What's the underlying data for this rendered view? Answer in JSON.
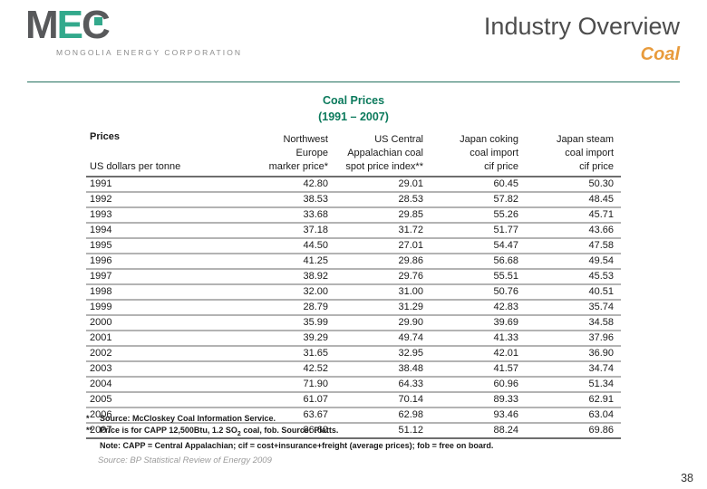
{
  "slide": {
    "page_number": "38"
  },
  "logo": {
    "letter_m": "M",
    "letter_e": "E",
    "letter_c": "C",
    "tagline": "MONGOLIA ENERGY CORPORATION",
    "gray": "#58595B",
    "green": "#33A98C"
  },
  "header": {
    "title": "Industry Overview",
    "subtitle": "Coal",
    "title_color": "#4D4D4D",
    "subtitle_color": "#E89B3C",
    "rule_color": "#25715F"
  },
  "table_title": {
    "line1": "Coal Prices",
    "line2": "(1991 – 2007)",
    "color": "#0B7A5C"
  },
  "table": {
    "corner_title": "Prices",
    "corner_subtitle": "US dollars per tonne",
    "columns": [
      {
        "lines": [
          "Northwest",
          "Europe",
          "marker price*"
        ]
      },
      {
        "lines": [
          "US Central",
          "Appalachian coal",
          "spot price index**"
        ]
      },
      {
        "lines": [
          "Japan coking",
          "coal import",
          "cif price"
        ]
      },
      {
        "lines": [
          "Japan steam",
          "coal import",
          "cif price"
        ]
      }
    ],
    "rows": [
      {
        "year": "1991",
        "values": [
          "42.80",
          "29.01",
          "60.45",
          "50.30"
        ]
      },
      {
        "year": "1992",
        "values": [
          "38.53",
          "28.53",
          "57.82",
          "48.45"
        ]
      },
      {
        "year": "1993",
        "values": [
          "33.68",
          "29.85",
          "55.26",
          "45.71"
        ]
      },
      {
        "year": "1994",
        "values": [
          "37.18",
          "31.72",
          "51.77",
          "43.66"
        ]
      },
      {
        "year": "1995",
        "values": [
          "44.50",
          "27.01",
          "54.47",
          "47.58"
        ]
      },
      {
        "year": "1996",
        "values": [
          "41.25",
          "29.86",
          "56.68",
          "49.54"
        ]
      },
      {
        "year": "1997",
        "values": [
          "38.92",
          "29.76",
          "55.51",
          "45.53"
        ]
      },
      {
        "year": "1998",
        "values": [
          "32.00",
          "31.00",
          "50.76",
          "40.51"
        ]
      },
      {
        "year": "1999",
        "values": [
          "28.79",
          "31.29",
          "42.83",
          "35.74"
        ]
      },
      {
        "year": "2000",
        "values": [
          "35.99",
          "29.90",
          "39.69",
          "34.58"
        ]
      },
      {
        "year": "2001",
        "values": [
          "39.29",
          "49.74",
          "41.33",
          "37.96"
        ]
      },
      {
        "year": "2002",
        "values": [
          "31.65",
          "32.95",
          "42.01",
          "36.90"
        ]
      },
      {
        "year": "2003",
        "values": [
          "42.52",
          "38.48",
          "41.57",
          "34.74"
        ]
      },
      {
        "year": "2004",
        "values": [
          "71.90",
          "64.33",
          "60.96",
          "51.34"
        ]
      },
      {
        "year": "2005",
        "values": [
          "61.07",
          "70.14",
          "89.33",
          "62.91"
        ]
      },
      {
        "year": "2006",
        "values": [
          "63.67",
          "62.98",
          "93.46",
          "63.04"
        ]
      },
      {
        "year": "2007",
        "values": [
          "86.60",
          "51.12",
          "88.24",
          "69.86"
        ]
      }
    ]
  },
  "footnotes": {
    "fn1_marker": "*",
    "fn1_text": "Source: McCloskey Coal Information Service.",
    "fn2_marker": "**",
    "fn2_text_pre": "Price is for CAPP 12,500Btu, 1.2 SO",
    "fn2_sub": "2",
    "fn2_text_post": " coal, fob. Source: Platts.",
    "note_label": "Note:",
    "note_text": " CAPP = Central Appalachian; cif = cost+insurance+freight (average prices); fob = free on board."
  },
  "source_line": "Source: BP Statistical Review of Energy 2009"
}
